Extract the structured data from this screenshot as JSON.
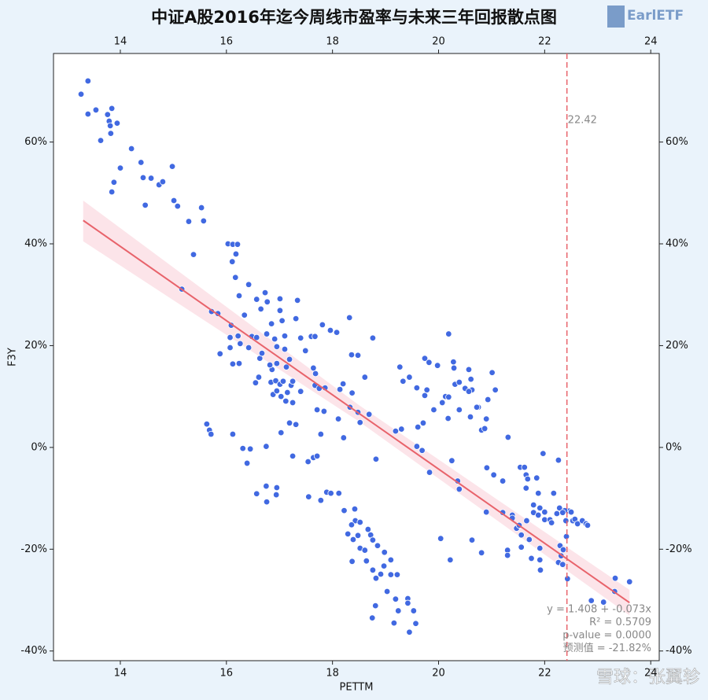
{
  "chart_data": {
    "type": "scatter",
    "title": "中证A股2016年迄今周线市盈率与未来三年回报散点图",
    "logo": "EarlETF",
    "watermark": "雪球：张翼轸",
    "xlabel": "PETTM",
    "ylabel": "F3Y",
    "color": "#4169e1",
    "xlim": [
      12.74,
      24.16
    ],
    "ylim": [
      -41.9,
      77.4
    ],
    "xticks": [
      14,
      16,
      18,
      20,
      22,
      24
    ],
    "yticks": [
      {
        "value": -40,
        "label": "-40%"
      },
      {
        "value": -20,
        "label": "-20%"
      },
      {
        "value": 0,
        "label": "0%"
      },
      {
        "value": 20,
        "label": "20%"
      },
      {
        "value": 40,
        "label": "40%"
      },
      {
        "value": 60,
        "label": "60%"
      }
    ],
    "fit": {
      "x": [
        13.3,
        23.6
      ],
      "values": [
        44.6,
        -30.5
      ],
      "color": "#e8636b"
    },
    "band": {
      "x": [
        13.3,
        18.5,
        23.6
      ],
      "upper": [
        48.5,
        8.3,
        -28
      ],
      "lower": [
        40.5,
        5.1,
        -33
      ],
      "color": "#fbdde3"
    },
    "vline": {
      "value": 22.42,
      "color": "#e8636b"
    },
    "annotations": [
      "y = 1.408 + -0.073x",
      "R² = 0.5709",
      "p-value = 0.0000",
      "预测值 = -21.82%"
    ],
    "x": [
      13.26,
      13.39,
      13.39,
      13.54,
      13.63,
      13.76,
      13.84,
      13.79,
      13.81,
      13.94,
      13.82,
      13.88,
      13.84,
      14.0,
      14.21,
      14.39,
      14.43,
      14.58,
      14.47,
      14.73,
      14.8,
      14.98,
      15.01,
      15.08,
      15.29,
      15.53,
      15.57,
      15.38,
      15.16,
      15.72,
      15.84,
      16.03,
      16.12,
      16.21,
      16.11,
      16.18,
      16.17,
      16.42,
      16.24,
      15.63,
      15.68,
      15.71,
      15.88,
      16.09,
      16.07,
      16.07,
      16.12,
      16.22,
      16.26,
      16.34,
      16.24,
      16.12,
      16.31,
      16.45,
      16.39,
      16.48,
      16.42,
      16.57,
      16.57,
      16.63,
      16.55,
      16.61,
      16.65,
      16.73,
      16.77,
      16.67,
      16.76,
      16.85,
      16.91,
      16.86,
      16.95,
      16.84,
      16.88,
      16.82,
      17.01,
      17.01,
      17.05,
      17.1,
      16.95,
      17.1,
      16.93,
      17.01,
      16.95,
      17.03,
      17.07,
      17.13,
      17.19,
      17.15,
      17.22,
      17.25,
      17.31,
      17.34,
      17.4,
      17.49,
      17.4,
      17.12,
      17.25,
      17.03,
      17.19,
      17.31,
      17.25,
      16.75,
      16.75,
      16.76,
      16.95,
      16.94,
      16.57,
      17.54,
      17.64,
      17.71,
      17.55,
      17.6,
      17.67,
      17.64,
      17.68,
      17.67,
      17.75,
      17.81,
      17.86,
      17.71,
      17.78,
      17.84,
      17.96,
      18.08,
      18.11,
      18.14,
      18.2,
      17.89,
      17.97,
      17.78,
      18.12,
      18.32,
      18.21,
      18.36,
      18.48,
      18.37,
      18.33,
      18.48,
      18.52,
      18.61,
      18.76,
      18.69,
      18.82,
      18.22,
      18.42,
      18.43,
      18.36,
      18.52,
      18.29,
      18.39,
      18.48,
      18.52,
      18.67,
      18.72,
      18.61,
      18.64,
      18.37,
      18.76,
      18.85,
      18.76,
      18.82,
      18.91,
      18.98,
      18.97,
      19.1,
      19.1,
      19.03,
      18.81,
      18.75,
      19.19,
      19.22,
      19.24,
      19.42,
      19.42,
      19.53,
      19.57,
      19.16,
      19.45,
      19.19,
      19.3,
      19.27,
      19.33,
      19.45,
      19.59,
      19.61,
      19.71,
      19.74,
      19.59,
      19.69,
      19.78,
      19.74,
      19.83,
      19.82,
      19.91,
      19.98,
      20.07,
      20.13,
      20.19,
      20.19,
      20.18,
      20.28,
      20.29,
      20.31,
      20.39,
      20.39,
      20.5,
      20.57,
      20.61,
      20.63,
      20.6,
      20.57,
      20.75,
      20.81,
      20.72,
      20.9,
      20.87,
      20.93,
      21.01,
      21.07,
      20.9,
      20.63,
      20.81,
      20.91,
      21.04,
      20.25,
      20.39,
      20.36,
      20.04,
      20.22,
      21.21,
      21.31,
      21.21,
      21.39,
      21.39,
      21.3,
      21.3,
      21.47,
      21.52,
      21.56,
      21.54,
      21.62,
      21.65,
      21.68,
      21.56,
      21.65,
      21.66,
      21.71,
      21.75,
      21.79,
      21.79,
      21.85,
      21.88,
      21.88,
      21.91,
      21.91,
      21.92,
      21.97,
      22.0,
      22.0,
      21.91,
      22.1,
      22.13,
      22.17,
      22.23,
      22.29,
      22.31,
      22.26,
      22.28,
      22.26,
      22.34,
      22.35,
      22.41,
      22.4,
      22.46,
      22.43,
      22.5,
      22.53,
      22.57,
      22.62,
      22.71,
      22.78,
      22.81,
      22.38,
      22.34,
      22.88,
      23.11,
      23.33,
      23.32,
      23.6
    ],
    "values": [
      69.4,
      72.0,
      65.5,
      66.3,
      60.3,
      65.4,
      66.6,
      64.1,
      63.2,
      63.7,
      61.7,
      52.1,
      50.2,
      54.9,
      58.7,
      56.0,
      53.0,
      52.9,
      47.6,
      51.6,
      52.2,
      55.2,
      48.5,
      47.4,
      44.4,
      47.1,
      44.5,
      37.9,
      31.1,
      26.7,
      26.3,
      40.0,
      39.9,
      39.9,
      36.5,
      38.0,
      33.4,
      32.0,
      29.8,
      4.6,
      3.4,
      2.6,
      18.4,
      24.0,
      21.6,
      19.6,
      16.4,
      21.9,
      20.4,
      26.0,
      16.5,
      2.6,
      -0.2,
      -0.3,
      -3.1,
      21.8,
      19.6,
      29.1,
      21.6,
      17.5,
      12.7,
      13.8,
      27.2,
      30.4,
      28.6,
      18.5,
      22.3,
      24.3,
      21.3,
      15.3,
      16.5,
      12.8,
      10.4,
      16.2,
      29.2,
      26.9,
      24.9,
      21.9,
      19.8,
      19.3,
      13.1,
      12.4,
      11.1,
      10.0,
      13.0,
      15.8,
      17.3,
      10.8,
      12.2,
      13.0,
      25.3,
      28.9,
      21.5,
      19.0,
      11.0,
      9.1,
      8.8,
      2.9,
      4.8,
      4.5,
      -1.7,
      0.2,
      -7.6,
      -10.7,
      -7.9,
      -9.3,
      -9.1,
      -2.8,
      -2.0,
      -1.7,
      -9.7,
      21.8,
      21.8,
      15.6,
      14.5,
      12.2,
      11.6,
      24.1,
      11.7,
      7.4,
      2.6,
      7.1,
      23.0,
      22.6,
      5.6,
      11.4,
      12.5,
      -8.8,
      -9.0,
      -10.4,
      -9.0,
      25.5,
      1.9,
      18.2,
      18.1,
      10.7,
      7.9,
      6.9,
      4.9,
      13.8,
      21.5,
      6.5,
      -2.3,
      -12.4,
      -12.1,
      -14.4,
      -15.2,
      -14.7,
      -17.0,
      -18.1,
      -17.3,
      -19.8,
      -16.1,
      -17.2,
      -20.2,
      -22.3,
      -22.4,
      -18.2,
      -19.3,
      -24.1,
      -25.7,
      -24.9,
      -20.6,
      -23.3,
      -22.1,
      -25.0,
      -28.3,
      -31.1,
      -33.5,
      -29.8,
      -25.0,
      -32.1,
      -29.7,
      -30.6,
      -32.1,
      -34.6,
      -34.5,
      -36.3,
      3.2,
      3.6,
      15.8,
      13.0,
      13.8,
      11.7,
      4.0,
      4.8,
      17.5,
      0.2,
      -0.6,
      11.3,
      10.2,
      -4.9,
      16.7,
      7.4,
      16.1,
      8.8,
      10.0,
      22.3,
      9.9,
      5.7,
      16.8,
      15.6,
      12.4,
      12.8,
      7.4,
      11.6,
      15.3,
      13.4,
      11.3,
      6.0,
      11.0,
      7.9,
      3.4,
      7.9,
      5.6,
      3.7,
      9.4,
      14.7,
      11.3,
      -12.7,
      -18.2,
      -20.7,
      -4.0,
      -5.4,
      -2.6,
      -8.2,
      -6.6,
      -17.9,
      -22.1,
      -6.6,
      2.0,
      -12.8,
      -13.3,
      -13.9,
      -20.2,
      -21.2,
      -15.9,
      -15.3,
      -17.2,
      -3.9,
      -3.9,
      -5.4,
      -6.2,
      -19.6,
      -8.0,
      -14.4,
      -18.1,
      -21.8,
      -12.8,
      -11.3,
      -6.0,
      -9.0,
      -13.3,
      -11.9,
      -22.1,
      -24.1,
      -1.2,
      -12.7,
      -14.2,
      -19.8,
      -14.2,
      -14.8,
      -9.0,
      -13.0,
      -19.3,
      -21.3,
      -2.5,
      -11.9,
      -22.6,
      -23.0,
      -20.1,
      -17.5,
      -14.4,
      -12.5,
      -25.8,
      -12.7,
      -14.4,
      -14.1,
      -15.0,
      -14.4,
      -15.0,
      -15.3,
      -12.4,
      -12.8,
      -30.1,
      -30.4,
      -25.7,
      -28.3,
      -26.4
    ]
  }
}
